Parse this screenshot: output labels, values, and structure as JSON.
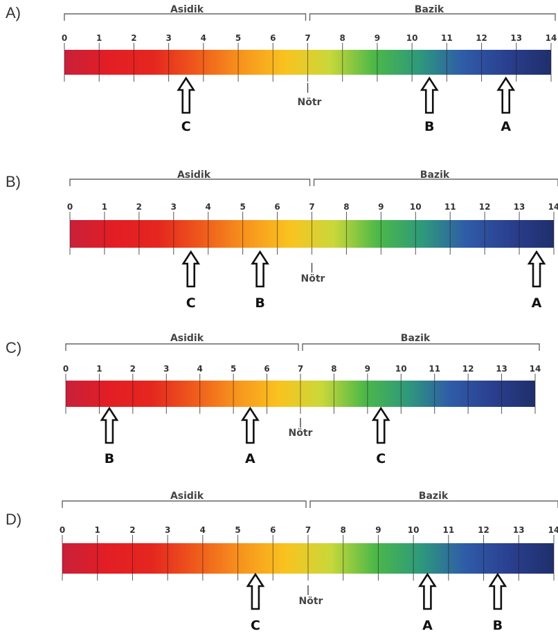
{
  "colors": {
    "gradient": [
      "#c8203a",
      "#e31e24",
      "#e4261f",
      "#ef5a1c",
      "#f7941d",
      "#f9c31f",
      "#c9d83a",
      "#4cb848",
      "#2e9a7a",
      "#2f5ca8",
      "#2a3f8f",
      "#1f2f6b"
    ]
  },
  "scale": {
    "min": 0,
    "max": 14,
    "ticks": [
      "0",
      "1",
      "2",
      "3",
      "4",
      "5",
      "6",
      "7",
      "8",
      "9",
      "10",
      "11",
      "12",
      "13",
      "14"
    ]
  },
  "options": [
    {
      "label": "A)",
      "acid_label": "Asidik",
      "base_label": "Bazik",
      "neutral_label": "Nötr",
      "arrows": [
        {
          "letter": "C",
          "ph": 3.5
        },
        {
          "letter": "B",
          "ph": 10.5
        },
        {
          "letter": "A",
          "ph": 12.7
        }
      ]
    },
    {
      "label": "B)",
      "acid_label": "Asidik",
      "base_label": "Bazik",
      "neutral_label": "Nötr",
      "arrows": [
        {
          "letter": "C",
          "ph": 3.5
        },
        {
          "letter": "B",
          "ph": 5.5
        },
        {
          "letter": "A",
          "ph": 13.5
        }
      ]
    },
    {
      "label": "C)",
      "acid_label": "Asidik",
      "base_label": "Bazik",
      "neutral_label": "Nötr",
      "arrows": [
        {
          "letter": "B",
          "ph": 1.3
        },
        {
          "letter": "A",
          "ph": 5.5
        },
        {
          "letter": "C",
          "ph": 9.4
        }
      ]
    },
    {
      "label": "D)",
      "acid_label": "Asidik",
      "base_label": "Bazik",
      "neutral_label": "Nötr",
      "arrows": [
        {
          "letter": "C",
          "ph": 5.5
        },
        {
          "letter": "A",
          "ph": 10.4
        },
        {
          "letter": "B",
          "ph": 12.4
        }
      ]
    }
  ]
}
